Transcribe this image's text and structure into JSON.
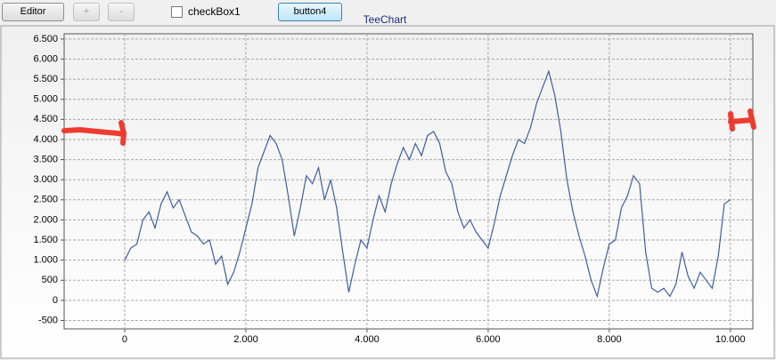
{
  "toolbar": {
    "editor": "Editor",
    "plus": "+",
    "minus": "-",
    "checkbox": "checkBox1",
    "button": "button4"
  },
  "chart_data": {
    "type": "line",
    "title": "TeeChart",
    "color": "#3d5f9e",
    "grid": true,
    "x": [
      0,
      100,
      200,
      300,
      400,
      500,
      600,
      700,
      800,
      900,
      1000,
      1100,
      1200,
      1300,
      1400,
      1500,
      1600,
      1700,
      1800,
      1900,
      2000,
      2100,
      2200,
      2300,
      2400,
      2500,
      2600,
      2700,
      2800,
      2900,
      3000,
      3100,
      3200,
      3300,
      3400,
      3500,
      3600,
      3700,
      3800,
      3900,
      4000,
      4100,
      4200,
      4300,
      4400,
      4500,
      4600,
      4700,
      4800,
      4900,
      5000,
      5100,
      5200,
      5300,
      5400,
      5500,
      5600,
      5700,
      5800,
      5900,
      6000,
      6100,
      6200,
      6300,
      6400,
      6500,
      6600,
      6700,
      6800,
      6900,
      7000,
      7100,
      7200,
      7300,
      7400,
      7500,
      7600,
      7700,
      7800,
      7900,
      8000,
      8100,
      8200,
      8300,
      8400,
      8500,
      8600,
      8700,
      8800,
      8900,
      9000,
      9100,
      9200,
      9300,
      9400,
      9500,
      9600,
      9700,
      9800,
      9900,
      10000
    ],
    "values": [
      1000,
      1300,
      1400,
      2000,
      2200,
      1800,
      2400,
      2700,
      2300,
      2500,
      2100,
      1700,
      1600,
      1400,
      1500,
      900,
      1100,
      400,
      700,
      1200,
      1800,
      2400,
      3300,
      3700,
      4100,
      3900,
      3500,
      2600,
      1600,
      2300,
      3100,
      2900,
      3300,
      2500,
      3000,
      2300,
      1200,
      200,
      900,
      1500,
      1300,
      2000,
      2600,
      2200,
      2900,
      3400,
      3800,
      3500,
      3900,
      3600,
      4100,
      4200,
      3900,
      3200,
      2900,
      2200,
      1800,
      2000,
      1700,
      1500,
      1300,
      1900,
      2600,
      3100,
      3600,
      4000,
      3900,
      4300,
      4900,
      5300,
      5700,
      5100,
      4200,
      3000,
      2200,
      1600,
      1100,
      500,
      100,
      800,
      1400,
      1500,
      2300,
      2600,
      3100,
      2900,
      1200,
      300,
      200,
      300,
      100,
      400,
      1200,
      600,
      300,
      700,
      500,
      300,
      1100,
      2400,
      2500
    ],
    "xlim": [
      -1000,
      10370
    ],
    "ylim": [
      -710,
      6630
    ],
    "xticks": [
      0,
      {
        "value": 2000,
        "label": "2.000"
      },
      {
        "value": 4000,
        "label": "4.000"
      },
      {
        "value": 6000,
        "label": "6.000"
      },
      {
        "value": 8000,
        "label": "8.000"
      },
      {
        "value": 10000,
        "label": "10.000"
      }
    ],
    "yticks": [
      -500,
      0,
      500,
      {
        "value": 1000,
        "label": "1.000"
      },
      {
        "value": 1500,
        "label": "1.500"
      },
      {
        "value": 2000,
        "label": "2.000"
      },
      {
        "value": 2500,
        "label": "2.500"
      },
      {
        "value": 3000,
        "label": "3.000"
      },
      {
        "value": 3500,
        "label": "3.500"
      },
      {
        "value": 4000,
        "label": "4.000"
      },
      {
        "value": 4500,
        "label": "4.500"
      },
      {
        "value": 5000,
        "label": "5.000"
      },
      {
        "value": 5500,
        "label": "5.500"
      },
      {
        "value": 6000,
        "label": "6.000"
      },
      {
        "value": 6500,
        "label": "6.500"
      }
    ]
  }
}
